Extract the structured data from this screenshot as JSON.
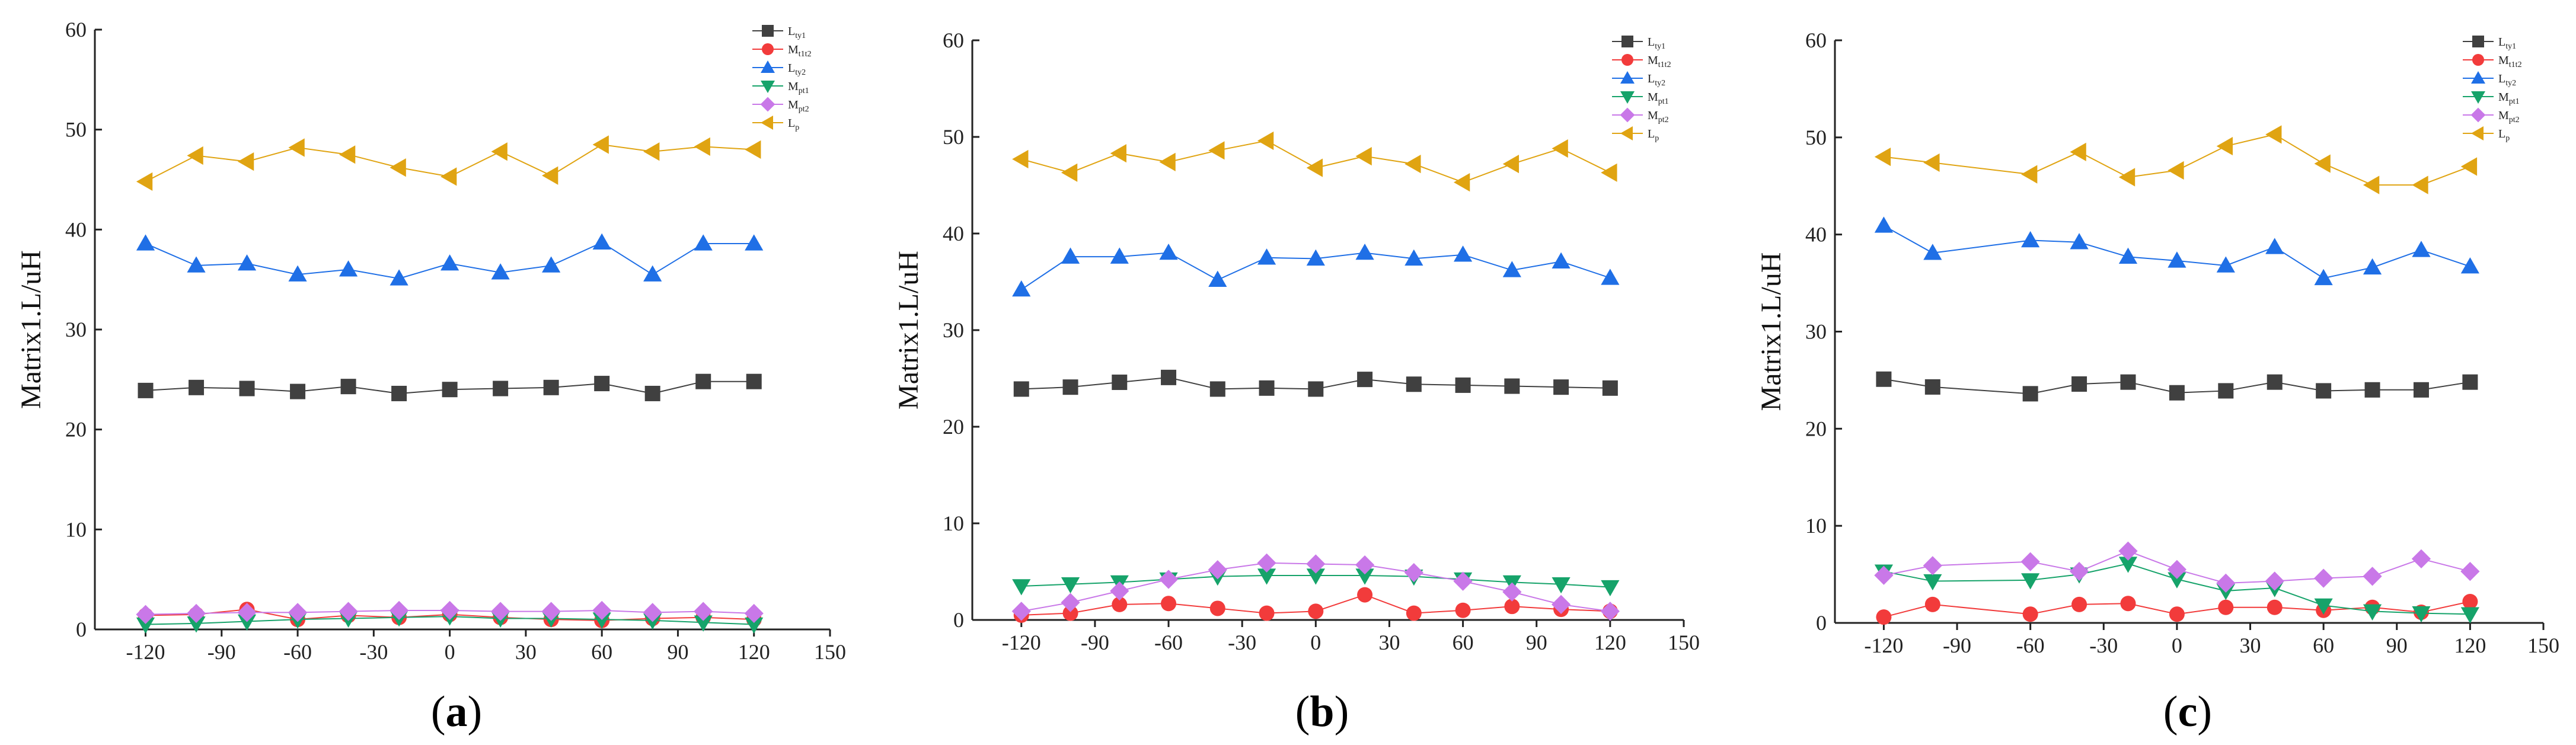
{
  "series_styles": [
    {
      "key": "Lty1",
      "marker": "square",
      "color": "#404040"
    },
    {
      "key": "Mt1t2",
      "marker": "circle",
      "color": "#f23b3b"
    },
    {
      "key": "Lty2",
      "marker": "triangle-up",
      "color": "#1f6fe6"
    },
    {
      "key": "Mpt1",
      "marker": "triangle-down",
      "color": "#16a36a"
    },
    {
      "key": "Mpt2",
      "marker": "diamond",
      "color": "#c978e8"
    },
    {
      "key": "Lp",
      "marker": "triangle-left",
      "color": "#e0a412"
    }
  ],
  "chart_data": [
    {
      "panel_label": "a",
      "type": "line",
      "ylabel": "Matrix1.L/uH",
      "xlabel": "",
      "ylim": [
        0,
        60
      ],
      "xlim": [
        -140,
        150
      ],
      "xticks": [
        "-120",
        "-90",
        "-60",
        "-30",
        "0",
        "30",
        "60",
        "90",
        "120",
        "150"
      ],
      "yticks": [
        "0",
        "10",
        "20",
        "30",
        "40",
        "50",
        "60"
      ],
      "legend_position": "top-right",
      "series": [
        {
          "name": "L",
          "sub": "ty1",
          "x": [
            -120,
            -100,
            -80,
            -60,
            -40,
            -20,
            0,
            20,
            40,
            60,
            80,
            100,
            120
          ],
          "values": [
            23.9,
            24.2,
            24.1,
            23.8,
            24.3,
            23.6,
            24.0,
            24.1,
            24.2,
            24.6,
            23.6,
            24.8,
            24.8
          ]
        },
        {
          "name": "M",
          "sub": "t1t2",
          "x": [
            -120,
            -100,
            -80,
            -60,
            -40,
            -20,
            0,
            20,
            40,
            60,
            80,
            100,
            120
          ],
          "values": [
            1.4,
            1.5,
            2.0,
            1.0,
            1.4,
            1.2,
            1.5,
            1.2,
            1.0,
            0.9,
            1.1,
            1.2,
            1.0
          ]
        },
        {
          "name": "L",
          "sub": "ty2",
          "x": [
            -120,
            -100,
            -80,
            -60,
            -40,
            -20,
            0,
            20,
            40,
            60,
            80,
            100,
            120
          ],
          "values": [
            38.6,
            36.4,
            36.6,
            35.5,
            36.0,
            35.1,
            36.6,
            35.7,
            36.4,
            38.7,
            35.5,
            38.6,
            38.6
          ]
        },
        {
          "name": "M",
          "sub": "pt1",
          "x": [
            -120,
            -100,
            -80,
            -60,
            -40,
            -20,
            0,
            20,
            40,
            60,
            80,
            100,
            120
          ],
          "values": [
            0.5,
            0.6,
            0.8,
            1.0,
            1.1,
            1.2,
            1.3,
            1.1,
            1.1,
            1.0,
            0.9,
            0.7,
            0.5
          ]
        },
        {
          "name": "M",
          "sub": "pt2",
          "x": [
            -120,
            -100,
            -80,
            -60,
            -40,
            -20,
            0,
            20,
            40,
            60,
            80,
            100,
            120
          ],
          "values": [
            1.5,
            1.6,
            1.7,
            1.7,
            1.8,
            1.9,
            1.9,
            1.8,
            1.8,
            1.9,
            1.7,
            1.8,
            1.6
          ]
        },
        {
          "name": "L",
          "sub": "p",
          "x": [
            -120,
            -100,
            -80,
            -60,
            -40,
            -20,
            0,
            20,
            40,
            60,
            80,
            100,
            120
          ],
          "values": [
            44.8,
            47.4,
            46.8,
            48.2,
            47.5,
            46.2,
            45.3,
            47.8,
            45.4,
            48.5,
            47.8,
            48.3,
            48.0
          ]
        }
      ]
    },
    {
      "panel_label": "b",
      "type": "line",
      "ylabel": "Matrix1.L/uH",
      "xlabel": "",
      "ylim": [
        0,
        60
      ],
      "xlim": [
        -140,
        150
      ],
      "xticks": [
        "-120",
        "-90",
        "-60",
        "-30",
        "0",
        "30",
        "60",
        "90",
        "120",
        "150"
      ],
      "yticks": [
        "0",
        "10",
        "20",
        "30",
        "40",
        "50",
        "60"
      ],
      "legend_position": "top-right",
      "series": [
        {
          "name": "L",
          "sub": "ty1",
          "x": [
            -120,
            -100,
            -80,
            -60,
            -40,
            -20,
            0,
            20,
            40,
            60,
            80,
            100,
            120
          ],
          "values": [
            23.9,
            24.1,
            24.6,
            25.1,
            23.9,
            24.0,
            23.9,
            24.9,
            24.4,
            24.3,
            24.2,
            24.1,
            24.0
          ]
        },
        {
          "name": "M",
          "sub": "t1t2",
          "x": [
            -120,
            -100,
            -80,
            -60,
            -40,
            -20,
            0,
            20,
            40,
            60,
            80,
            100,
            120
          ],
          "values": [
            0.5,
            0.7,
            1.6,
            1.7,
            1.2,
            0.7,
            0.9,
            2.6,
            0.7,
            1.0,
            1.4,
            1.1,
            0.9
          ]
        },
        {
          "name": "L",
          "sub": "ty2",
          "x": [
            -120,
            -100,
            -80,
            -60,
            -40,
            -20,
            0,
            20,
            40,
            60,
            80,
            100,
            120
          ],
          "values": [
            34.2,
            37.6,
            37.6,
            38.0,
            35.2,
            37.5,
            37.4,
            38.0,
            37.4,
            37.8,
            36.2,
            37.1,
            35.4
          ]
        },
        {
          "name": "M",
          "sub": "pt1",
          "x": [
            -120,
            -100,
            -80,
            -60,
            -40,
            -20,
            0,
            20,
            40,
            60,
            80,
            100,
            120
          ],
          "values": [
            3.5,
            3.7,
            3.9,
            4.2,
            4.5,
            4.6,
            4.6,
            4.6,
            4.5,
            4.2,
            3.9,
            3.7,
            3.4
          ]
        },
        {
          "name": "M",
          "sub": "pt2",
          "x": [
            -120,
            -100,
            -80,
            -60,
            -40,
            -20,
            0,
            20,
            40,
            60,
            80,
            100,
            120
          ],
          "values": [
            0.9,
            1.8,
            3.0,
            4.2,
            5.2,
            5.9,
            5.8,
            5.7,
            4.9,
            4.0,
            2.9,
            1.6,
            0.9
          ]
        },
        {
          "name": "L",
          "sub": "p",
          "x": [
            -120,
            -100,
            -80,
            -60,
            -40,
            -20,
            0,
            20,
            40,
            60,
            80,
            100,
            120
          ],
          "values": [
            47.7,
            46.3,
            48.3,
            47.4,
            48.6,
            49.6,
            46.8,
            48.0,
            47.2,
            45.3,
            47.2,
            48.8,
            46.3
          ]
        }
      ]
    },
    {
      "panel_label": "c",
      "type": "line",
      "ylabel": "Matrix1.L/uH",
      "xlabel": "",
      "ylim": [
        0,
        60
      ],
      "xlim": [
        -140,
        150
      ],
      "xticks": [
        "-120",
        "-90",
        "-60",
        "-30",
        "0",
        "30",
        "60",
        "90",
        "120",
        "150"
      ],
      "yticks": [
        "0",
        "10",
        "20",
        "30",
        "40",
        "50",
        "60"
      ],
      "legend_position": "top-right",
      "series": [
        {
          "name": "L",
          "sub": "ty1",
          "x": [
            -120,
            -100,
            -60,
            -40,
            -20,
            0,
            20,
            40,
            60,
            80,
            100,
            120
          ],
          "values": [
            25.1,
            24.3,
            23.6,
            24.6,
            24.8,
            23.7,
            23.9,
            24.8,
            23.9,
            24.0,
            24.0,
            24.8
          ]
        },
        {
          "name": "M",
          "sub": "t1t2",
          "x": [
            -120,
            -100,
            -60,
            -40,
            -20,
            0,
            20,
            40,
            60,
            80,
            100,
            120
          ],
          "values": [
            0.6,
            1.9,
            0.9,
            1.9,
            2.0,
            0.9,
            1.6,
            1.6,
            1.3,
            1.6,
            1.1,
            2.2
          ]
        },
        {
          "name": "L",
          "sub": "ty2",
          "x": [
            -120,
            -100,
            -60,
            -40,
            -20,
            0,
            20,
            40,
            60,
            80,
            100,
            120
          ],
          "values": [
            40.9,
            38.1,
            39.4,
            39.2,
            37.7,
            37.3,
            36.8,
            38.7,
            35.5,
            36.6,
            38.4,
            36.7
          ]
        },
        {
          "name": "M",
          "sub": "pt1",
          "x": [
            -120,
            -100,
            -60,
            -40,
            -20,
            0,
            20,
            40,
            60,
            80,
            100,
            120
          ],
          "values": [
            5.3,
            4.3,
            4.4,
            5.0,
            6.1,
            4.5,
            3.3,
            3.6,
            1.8,
            1.2,
            1.0,
            0.9
          ]
        },
        {
          "name": "M",
          "sub": "pt2",
          "x": [
            -120,
            -100,
            -60,
            -40,
            -20,
            0,
            20,
            40,
            60,
            80,
            100,
            120
          ],
          "values": [
            4.9,
            5.9,
            6.3,
            5.3,
            7.4,
            5.5,
            4.1,
            4.3,
            4.6,
            4.8,
            6.6,
            5.3
          ]
        },
        {
          "name": "L",
          "sub": "p",
          "x": [
            -120,
            -100,
            -60,
            -40,
            -20,
            0,
            20,
            40,
            60,
            80,
            100,
            120
          ],
          "values": [
            48.0,
            47.4,
            46.2,
            48.5,
            45.9,
            46.6,
            49.1,
            50.3,
            47.3,
            45.1,
            45.1,
            47.0
          ]
        }
      ]
    }
  ]
}
